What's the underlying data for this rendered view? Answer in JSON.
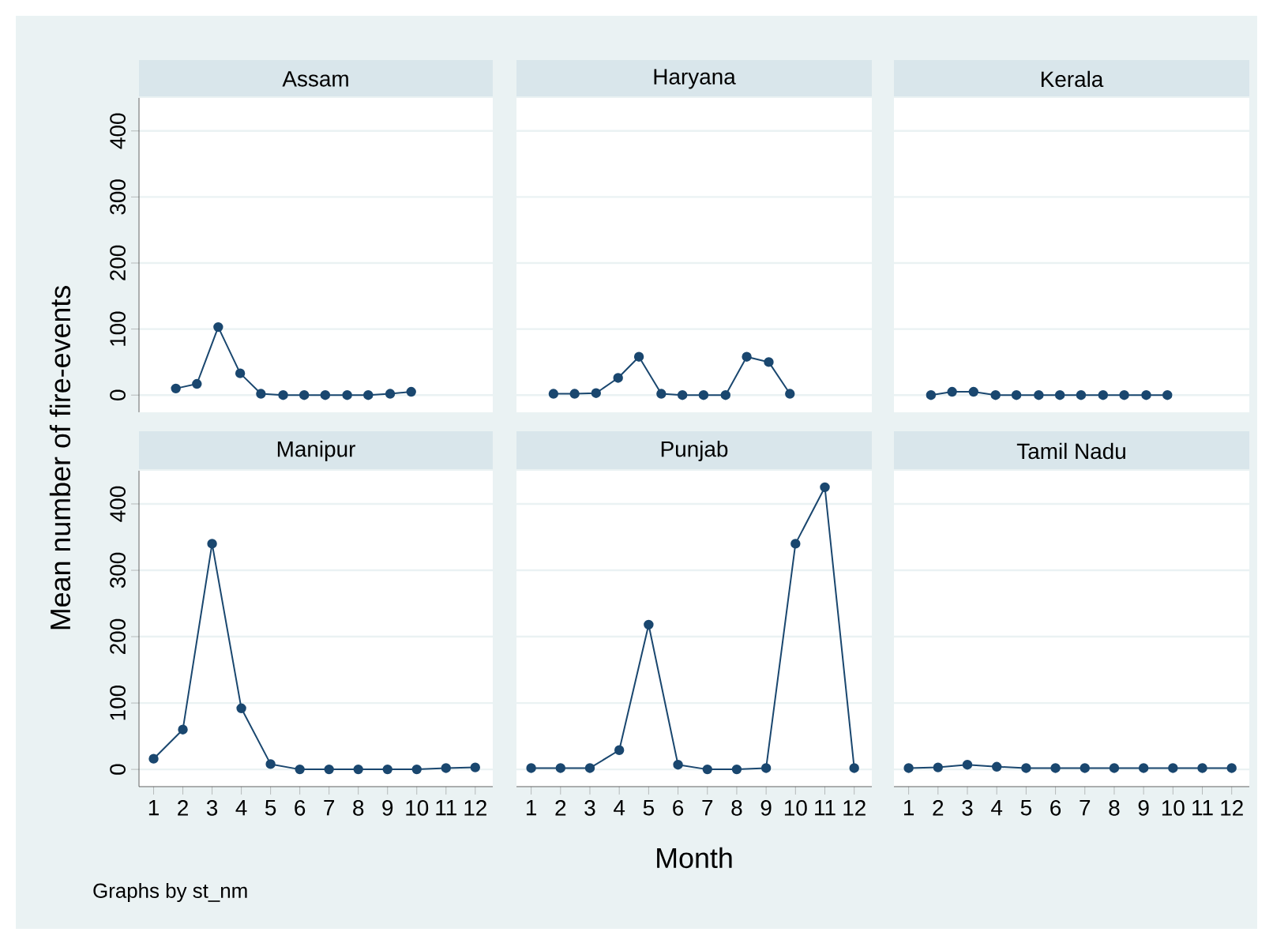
{
  "chart_data": [
    {
      "type": "line",
      "title": "Assam",
      "ylabel": "Mean number of fire-events",
      "color": "#1a476f",
      "marker": "circle",
      "grid": "y",
      "tick_labels": "y",
      "xlim": [
        0.5,
        12.6
      ],
      "ylim": [
        -26,
        450
      ],
      "yticks": [
        0,
        100,
        200,
        300,
        400
      ],
      "x": [
        1.76,
        2.48,
        3.21,
        3.96,
        4.67,
        5.43,
        6.15,
        6.87,
        7.62,
        8.34,
        9.09,
        9.81
      ],
      "values": [
        10,
        17,
        103,
        33,
        2,
        0,
        0,
        0,
        0,
        0,
        2,
        5
      ]
    },
    {
      "type": "line",
      "title": "Haryana",
      "color": "#1a476f",
      "marker": "circle",
      "grid": "y",
      "tick_labels": false,
      "xlim": [
        0.5,
        12.6
      ],
      "ylim": [
        -26,
        450
      ],
      "yticks": [
        0,
        100,
        200,
        300,
        400
      ],
      "x": [
        1.76,
        2.48,
        3.21,
        3.96,
        4.67,
        5.43,
        6.15,
        6.87,
        7.62,
        8.34,
        9.09,
        9.81
      ],
      "values": [
        2,
        2,
        3,
        26,
        58,
        2,
        0,
        0,
        0,
        58,
        50,
        2
      ]
    },
    {
      "type": "line",
      "title": "Kerala",
      "color": "#1a476f",
      "marker": "circle",
      "grid": "y",
      "tick_labels": false,
      "xlim": [
        0.5,
        12.6
      ],
      "ylim": [
        -26,
        450
      ],
      "yticks": [
        0,
        100,
        200,
        300,
        400
      ],
      "x": [
        1.76,
        2.48,
        3.21,
        3.96,
        4.67,
        5.43,
        6.15,
        6.87,
        7.62,
        8.34,
        9.09,
        9.81
      ],
      "values": [
        0,
        5,
        5,
        0,
        0,
        0,
        0,
        0,
        0,
        0,
        0,
        0
      ]
    },
    {
      "type": "line",
      "title": "Manipur",
      "annotations": [
        "Graphs by st_nm"
      ],
      "color": "#1a476f",
      "marker": "circle",
      "grid": "y",
      "xlim": [
        0.5,
        12.6
      ],
      "ylim": [
        -26,
        450
      ],
      "yticks": [
        0,
        100,
        200,
        300,
        400
      ],
      "xticks": [
        1,
        2,
        3,
        4,
        5,
        6,
        7,
        8,
        9,
        10,
        11,
        12
      ],
      "x": [
        1,
        2,
        3,
        4,
        5,
        6,
        7,
        8,
        9,
        10,
        11,
        12
      ],
      "values": [
        16,
        60,
        340,
        92,
        8,
        0,
        0,
        0,
        0,
        0,
        2,
        3
      ]
    },
    {
      "type": "line",
      "title": "Punjab",
      "xlabel": "Month",
      "color": "#1a476f",
      "marker": "circle",
      "grid": "y",
      "tick_labels": "x",
      "xlim": [
        0.5,
        12.6
      ],
      "ylim": [
        -26,
        450
      ],
      "yticks": [
        0,
        100,
        200,
        300,
        400
      ],
      "xticks": [
        1,
        2,
        3,
        4,
        5,
        6,
        7,
        8,
        9,
        10,
        11,
        12
      ],
      "x": [
        1,
        2,
        3,
        4,
        5,
        6,
        7,
        8,
        9,
        10,
        11,
        12
      ],
      "values": [
        2,
        2,
        2,
        29,
        218,
        7,
        0,
        0,
        2,
        340,
        425,
        2
      ]
    },
    {
      "type": "line",
      "title": "Tamil Nadu",
      "color": "#1a476f",
      "marker": "circle",
      "grid": "y",
      "tick_labels": "x",
      "xlim": [
        0.5,
        12.6
      ],
      "ylim": [
        -26,
        450
      ],
      "yticks": [
        0,
        100,
        200,
        300,
        400
      ],
      "xticks": [
        1,
        2,
        3,
        4,
        5,
        6,
        7,
        8,
        9,
        10,
        11,
        12
      ],
      "x": [
        1,
        2,
        3,
        4,
        5,
        6,
        7,
        8,
        9,
        10,
        11,
        12
      ],
      "values": [
        2,
        3,
        7,
        4,
        2,
        2,
        2,
        2,
        2,
        2,
        2,
        2
      ]
    }
  ]
}
